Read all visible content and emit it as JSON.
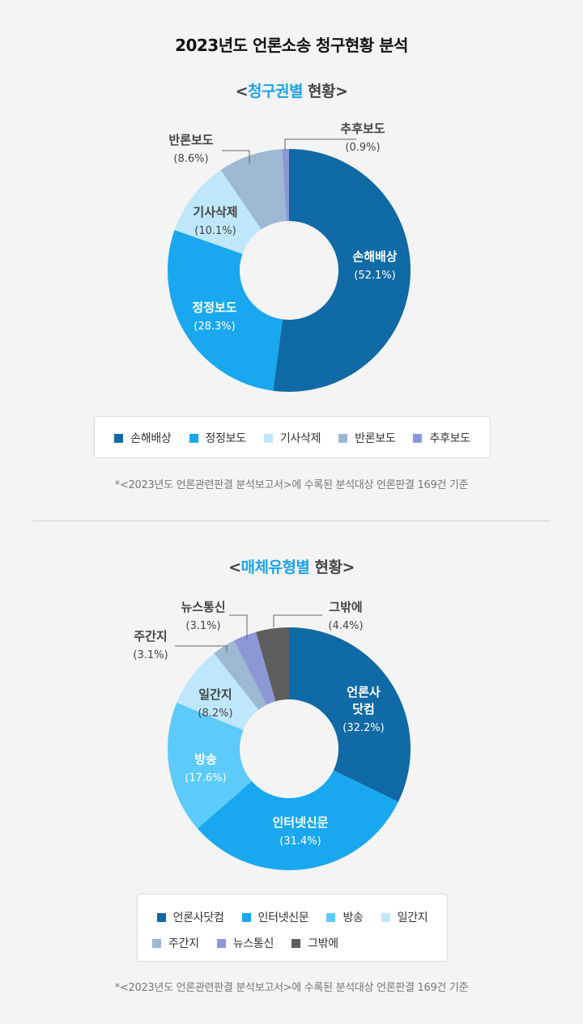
{
  "main_title": "2023년도 언론소송 청구현황 분석",
  "colors": {
    "darkblue": "#0f6aa5",
    "blue": "#19a8ef",
    "skyblue": "#5ccbf9",
    "paleblue": "#bfe7fb",
    "slate": "#9db8d3",
    "lavender": "#8c98d6",
    "gray": "#5e5e5e",
    "highlight": "#1fa3ea"
  },
  "sections": [
    {
      "title_open": "<",
      "title_highlight": "청구권별",
      "title_rest": " 현황>",
      "footnote": "*<2023년도 언론관련판결 분석보고서>에 수록된 분석대상 언론판결 169건 기준"
    },
    {
      "title_open": "<",
      "title_highlight": "매체유형별",
      "title_rest": " 현황>",
      "footnote": "*<2023년도 언론관련판결 분석보고서>에 수록된 분석대상 언론판결 169건 기준"
    }
  ],
  "chart_data": [
    {
      "type": "pie",
      "title": "청구권별 현황",
      "categories": [
        "손해배상",
        "정정보도",
        "기사삭제",
        "반론보도",
        "추후보도"
      ],
      "values": [
        52.1,
        28.3,
        10.1,
        8.6,
        0.9
      ],
      "labels": [
        "(52.1%)",
        "(28.3%)",
        "(10.1%)",
        "(8.6%)",
        "(0.9%)"
      ],
      "colors": [
        "#0f6aa5",
        "#19a8ef",
        "#bfe7fb",
        "#9db8d3",
        "#8c98d6"
      ],
      "legend": "bottom"
    },
    {
      "type": "pie",
      "title": "매체유형별 현황",
      "categories": [
        "언론사닷컴",
        "인터넷신문",
        "방송",
        "일간지",
        "주간지",
        "뉴스통신",
        "그밖에"
      ],
      "slice_names": [
        "언론사\n닷컴",
        "인터넷신문",
        "방송",
        "일간지",
        "주간지",
        "뉴스통신",
        "그밖에"
      ],
      "values": [
        32.2,
        31.4,
        17.6,
        8.2,
        3.1,
        3.1,
        4.4
      ],
      "labels": [
        "(32.2%)",
        "(31.4%)",
        "(17.6%)",
        "(8.2%)",
        "(3.1%)",
        "(3.1%)",
        "(4.4%)"
      ],
      "colors": [
        "#0f6aa5",
        "#19a8ef",
        "#5ccbf9",
        "#bfe7fb",
        "#9db8d3",
        "#8c98d6",
        "#5e5e5e"
      ],
      "legend": "bottom"
    }
  ]
}
